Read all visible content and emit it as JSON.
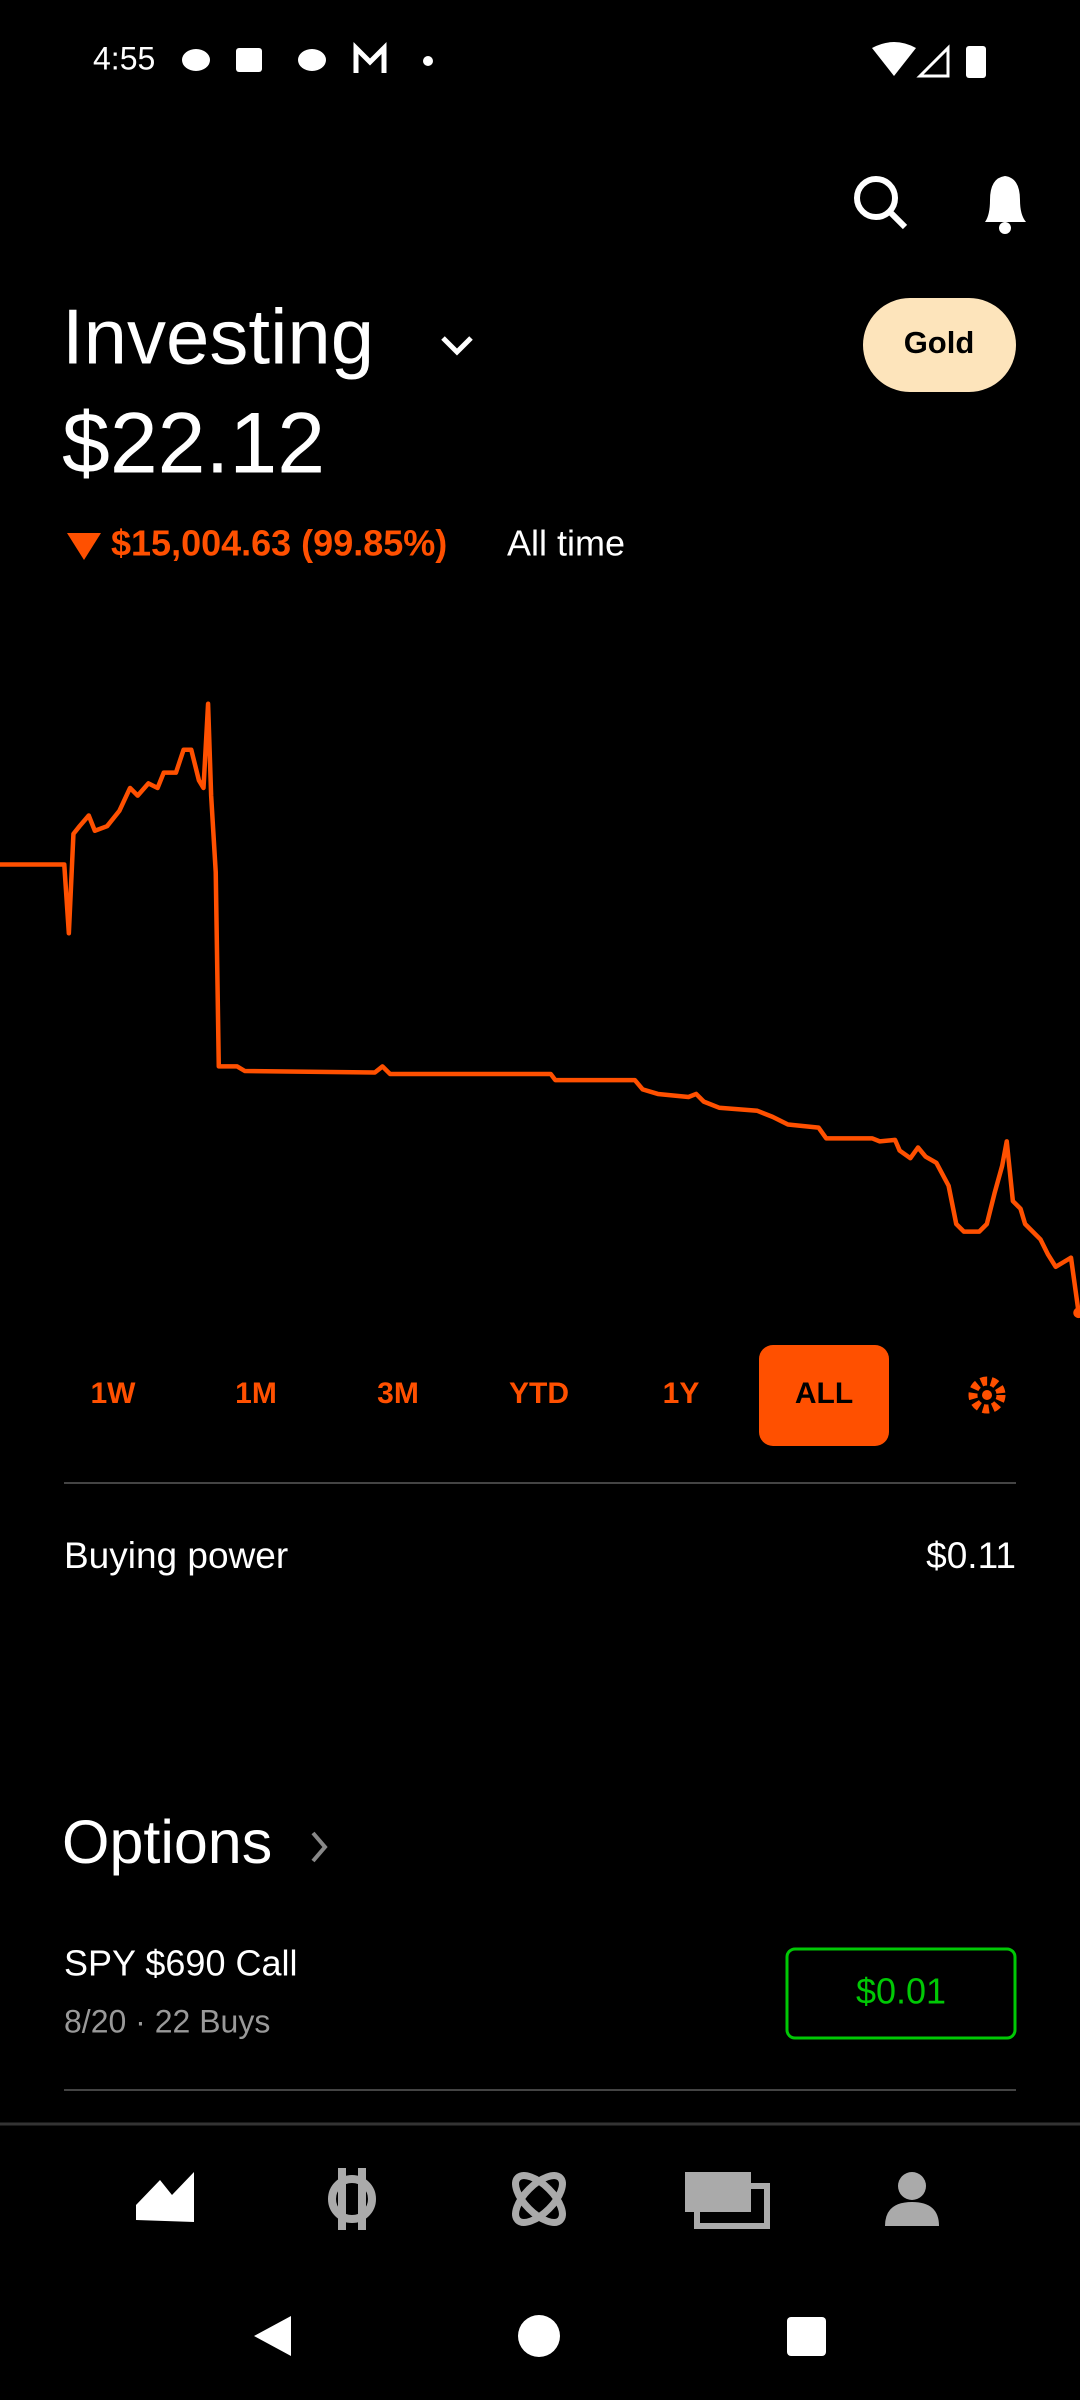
{
  "status_bar": {
    "time": "4:55"
  },
  "header": {
    "title": "Investing",
    "badge": "Gold"
  },
  "portfolio": {
    "value": "$22.12",
    "change": "$15,004.63 (99.85%)",
    "period": "All time"
  },
  "ranges": [
    "1W",
    "1M",
    "3M",
    "YTD",
    "1Y",
    "ALL"
  ],
  "buying_power": {
    "label": "Buying power",
    "value": "$0.11"
  },
  "options": {
    "title": "Options",
    "items": [
      {
        "name": "SPY $690 Call",
        "detail": "8/20 · 22 Buys",
        "price": "$0.01"
      }
    ]
  }
}
